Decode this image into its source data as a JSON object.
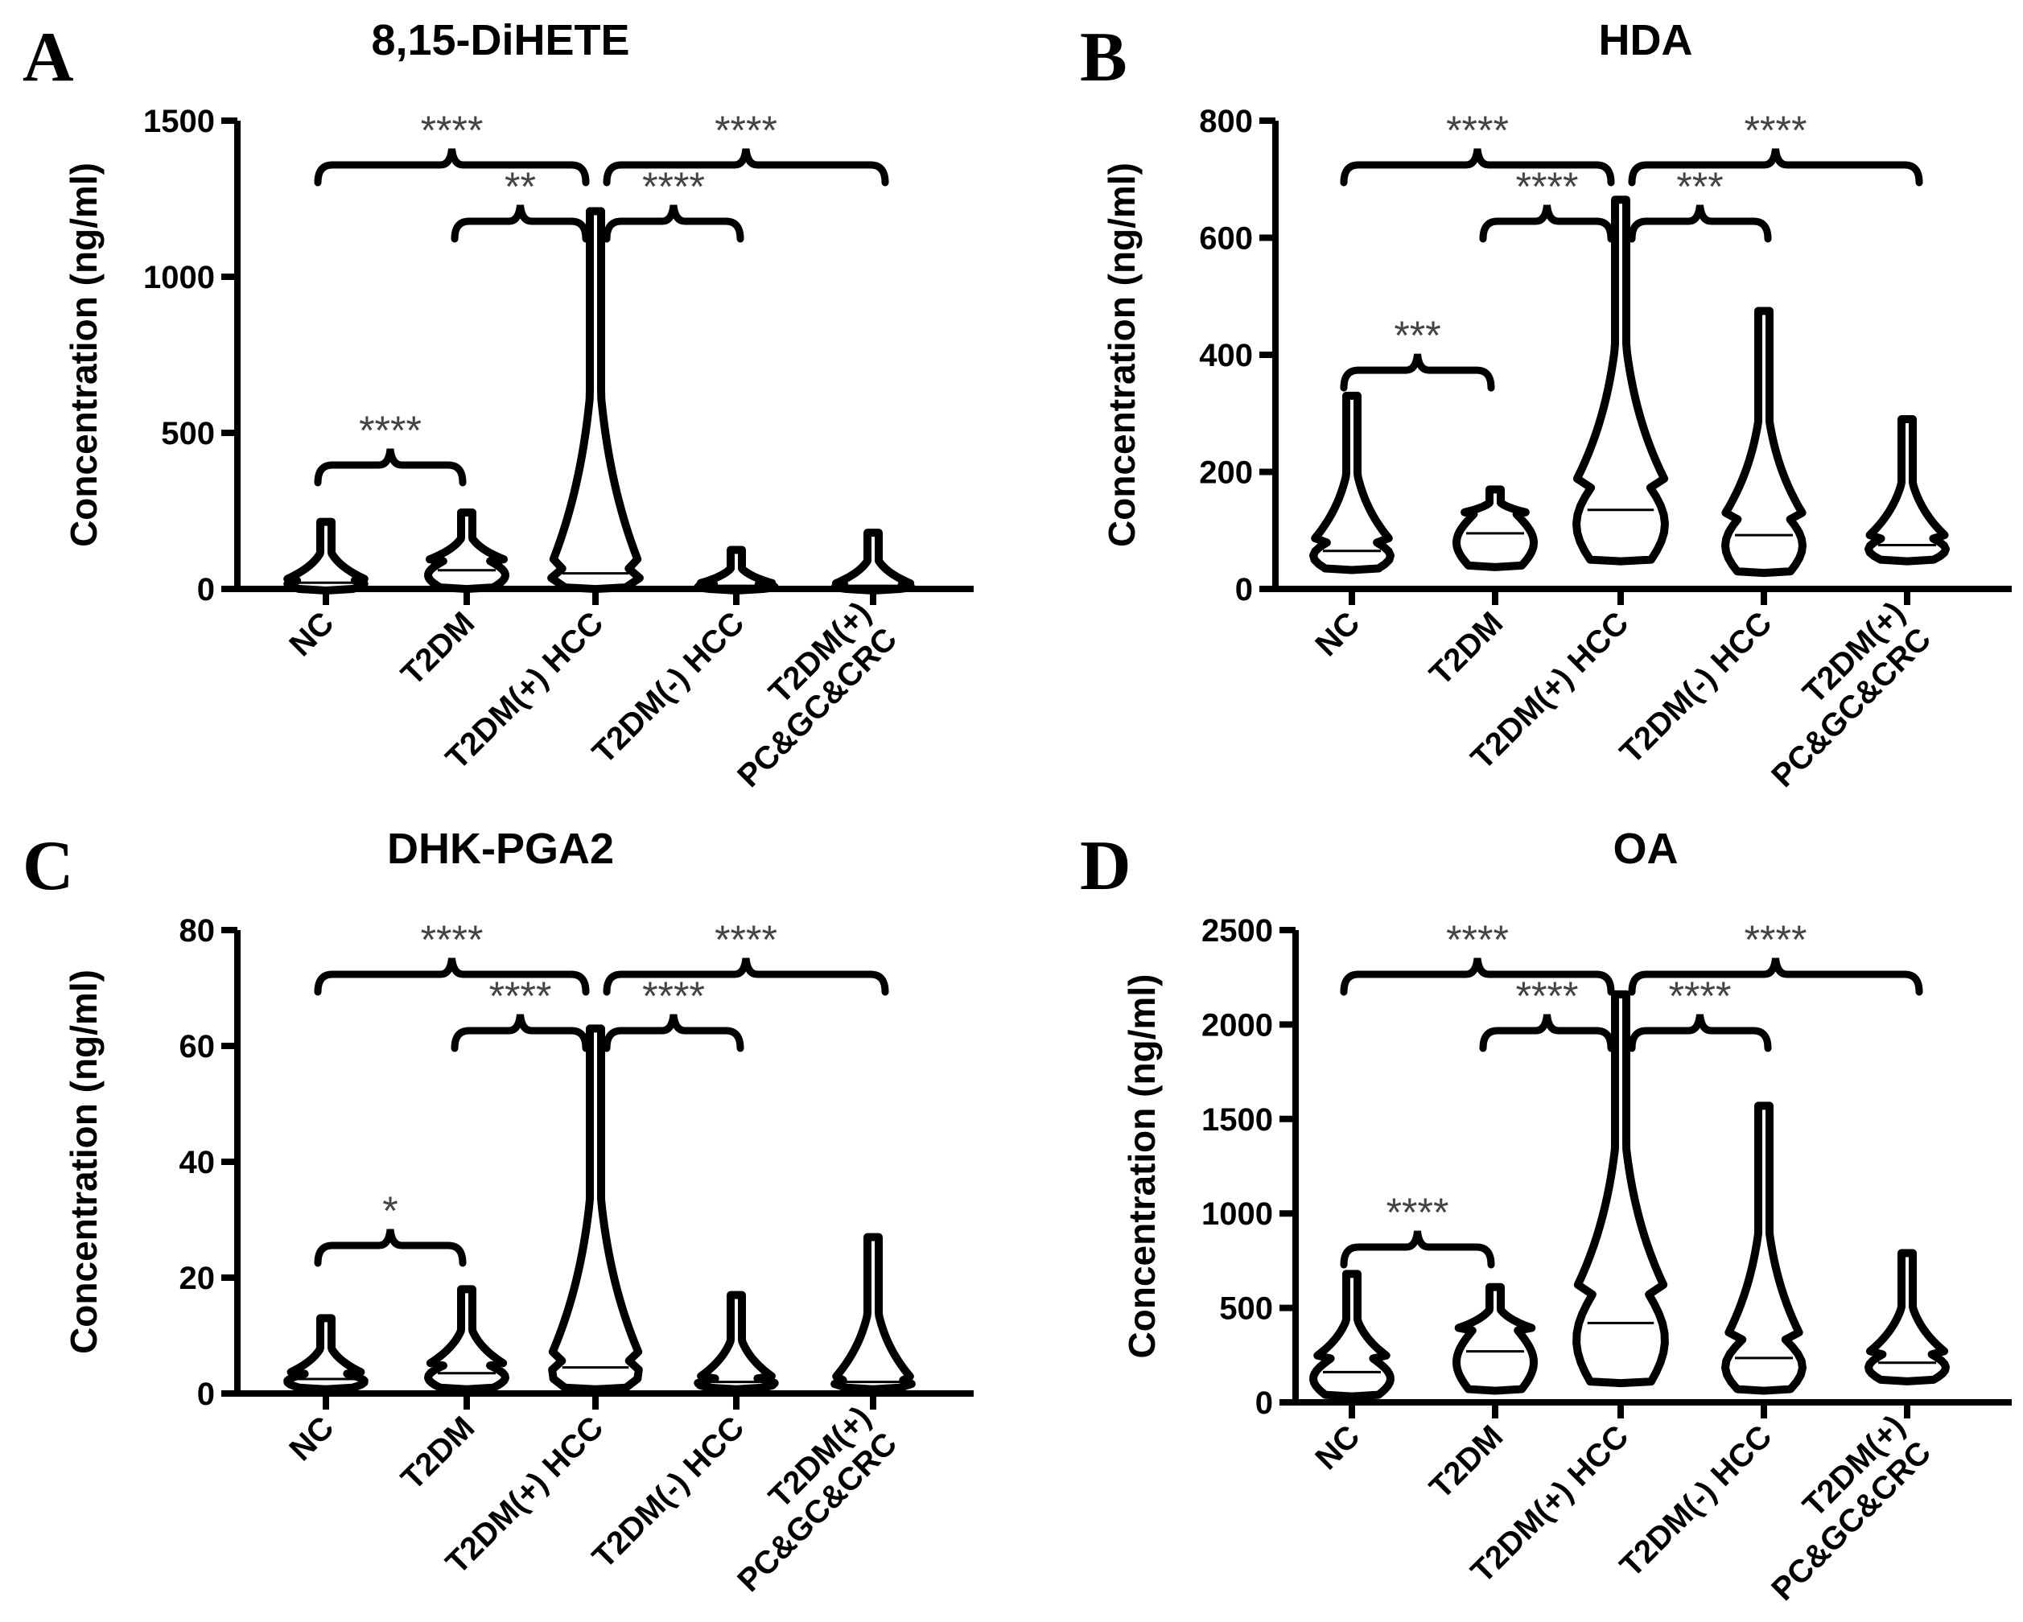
{
  "chart_data": [
    {
      "type": "violin",
      "panel": "A",
      "title": "8,15-DiHETE",
      "ylabel": "Concentration (ng/ml)",
      "xlabel": "",
      "categories": [
        "NC",
        "T2DM",
        "T2DM(+) HCC",
        "T2DM(-) HCC",
        "T2DM(+)\nPC&GC&CRC"
      ],
      "ylim": [
        0,
        1500
      ],
      "yticks": [
        0,
        500,
        1000,
        1500
      ],
      "violins": [
        {
          "median": 20,
          "min": 0,
          "max": 215
        },
        {
          "median": 60,
          "min": 5,
          "max": 245
        },
        {
          "median": 50,
          "min": 5,
          "max": 1210
        },
        {
          "median": 10,
          "min": 0,
          "max": 125
        },
        {
          "median": 10,
          "min": 0,
          "max": 180
        }
      ],
      "comparisons": [
        {
          "from": 0,
          "to": 1,
          "label": "****"
        },
        {
          "from": 1,
          "to": 2,
          "label": "**"
        },
        {
          "from": 0,
          "to": 2,
          "label": "****"
        },
        {
          "from": 2,
          "to": 3,
          "label": "****"
        },
        {
          "from": 2,
          "to": 4,
          "label": "****"
        }
      ]
    },
    {
      "type": "violin",
      "panel": "B",
      "title": "HDA",
      "ylabel": "Concentration (ng/ml)",
      "xlabel": "",
      "categories": [
        "NC",
        "T2DM",
        "T2DM(+) HCC",
        "T2DM(-) HCC",
        "T2DM(+)\nPC&GC&CRC"
      ],
      "ylim": [
        0,
        800
      ],
      "yticks": [
        0,
        200,
        400,
        600,
        800
      ],
      "violins": [
        {
          "median": 65,
          "min": 35,
          "max": 330
        },
        {
          "median": 95,
          "min": 40,
          "max": 170
        },
        {
          "median": 135,
          "min": 50,
          "max": 665
        },
        {
          "median": 92,
          "min": 30,
          "max": 475
        },
        {
          "median": 75,
          "min": 50,
          "max": 290
        }
      ],
      "comparisons": [
        {
          "from": 0,
          "to": 1,
          "label": "***"
        },
        {
          "from": 1,
          "to": 2,
          "label": "****"
        },
        {
          "from": 0,
          "to": 2,
          "label": "****"
        },
        {
          "from": 2,
          "to": 3,
          "label": "***"
        },
        {
          "from": 2,
          "to": 4,
          "label": "****"
        }
      ]
    },
    {
      "type": "violin",
      "panel": "C",
      "title": "DHK-PGA2",
      "ylabel": "Concentration (ng/ml)",
      "xlabel": "",
      "categories": [
        "NC",
        "T2DM",
        "T2DM(+) HCC",
        "T2DM(-) HCC",
        "T2DM(+)\nPC&GC&CRC"
      ],
      "ylim": [
        0,
        80
      ],
      "yticks": [
        0,
        20,
        40,
        60,
        80
      ],
      "violins": [
        {
          "median": 2.5,
          "min": 1,
          "max": 13
        },
        {
          "median": 3.5,
          "min": 1,
          "max": 18
        },
        {
          "median": 4.5,
          "min": 1,
          "max": 63
        },
        {
          "median": 2,
          "min": 1,
          "max": 17
        },
        {
          "median": 2,
          "min": 1,
          "max": 27
        }
      ],
      "comparisons": [
        {
          "from": 0,
          "to": 1,
          "label": "*"
        },
        {
          "from": 1,
          "to": 2,
          "label": "****"
        },
        {
          "from": 0,
          "to": 2,
          "label": "****"
        },
        {
          "from": 2,
          "to": 3,
          "label": "****"
        },
        {
          "from": 2,
          "to": 4,
          "label": "****"
        }
      ]
    },
    {
      "type": "violin",
      "panel": "D",
      "title": "OA",
      "ylabel": "Concentration (ng/ml)",
      "xlabel": "",
      "categories": [
        "NC",
        "T2DM",
        "T2DM(+) HCC",
        "T2DM(-) HCC",
        "T2DM(+)\nPC&GC&CRC"
      ],
      "ylim": [
        0,
        2500
      ],
      "yticks": [
        0,
        500,
        1000,
        1500,
        2000,
        2500
      ],
      "violins": [
        {
          "median": 160,
          "min": 40,
          "max": 680
        },
        {
          "median": 270,
          "min": 70,
          "max": 610
        },
        {
          "median": 420,
          "min": 110,
          "max": 2160
        },
        {
          "median": 235,
          "min": 70,
          "max": 1570
        },
        {
          "median": 210,
          "min": 120,
          "max": 790
        }
      ],
      "comparisons": [
        {
          "from": 0,
          "to": 1,
          "label": "****"
        },
        {
          "from": 1,
          "to": 2,
          "label": "****"
        },
        {
          "from": 0,
          "to": 2,
          "label": "****"
        },
        {
          "from": 2,
          "to": 3,
          "label": "****"
        },
        {
          "from": 2,
          "to": 4,
          "label": "****"
        }
      ]
    }
  ]
}
